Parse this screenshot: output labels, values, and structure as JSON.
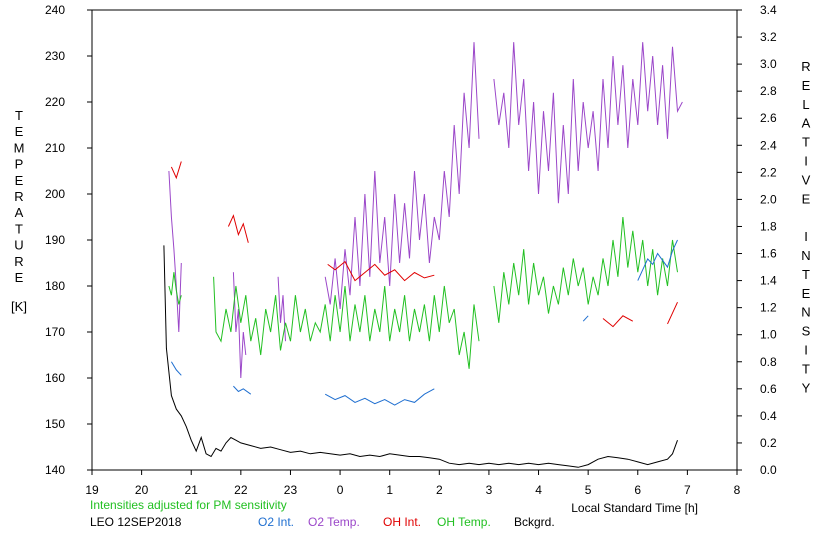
{
  "chart_data": {
    "type": "line",
    "left_axis_label": "TEMPERATURE",
    "left_axis_unit": "[K]",
    "right_axis_label": "RELATIVE INTENSITY",
    "xlabel": "Local Standard Time [h]",
    "note": "Intensities adjusted for PM sensitivity",
    "station_date": "LEO 12SEP2018",
    "xlim": [
      19,
      32
    ],
    "x_tick_labels": [
      "19",
      "20",
      "21",
      "22",
      "23",
      "0",
      "1",
      "2",
      "3",
      "4",
      "5",
      "6",
      "7",
      "8"
    ],
    "left_ylim": [
      140,
      240
    ],
    "left_ticks": [
      140,
      150,
      160,
      170,
      180,
      190,
      200,
      210,
      220,
      230,
      240
    ],
    "right_ylim": [
      0.0,
      3.4
    ],
    "right_ticks": [
      "0.0",
      "0.2",
      "0.4",
      "0.6",
      "0.8",
      "1.0",
      "1.2",
      "1.4",
      "1.6",
      "1.8",
      "2.0",
      "2.2",
      "2.4",
      "2.6",
      "2.8",
      "3.0",
      "3.2",
      "3.4"
    ],
    "grid": false,
    "colors": {
      "O2 Int.": "#1f6fd0",
      "O2 Temp.": "#9b47c9",
      "OH Int.": "#e00000",
      "OH Temp.": "#22c022",
      "Bckgrd.": "#000000",
      "note": "#22c022"
    },
    "series": [
      {
        "name": "O2 Temp.",
        "axis": "left",
        "points": [
          [
            20.55,
            205
          ],
          [
            20.6,
            195
          ],
          [
            20.65,
            188
          ],
          [
            20.7,
            180
          ],
          [
            20.75,
            170
          ],
          [
            20.8,
            185
          ],
          [
            21.85,
            183
          ],
          [
            21.9,
            170
          ],
          [
            21.95,
            175
          ],
          [
            22.0,
            160
          ],
          [
            22.05,
            170
          ],
          [
            22.1,
            165
          ],
          [
            22.75,
            182
          ],
          [
            22.8,
            172
          ],
          [
            22.85,
            178
          ],
          [
            22.9,
            168
          ],
          [
            23.7,
            182
          ],
          [
            23.8,
            176
          ],
          [
            23.9,
            186
          ],
          [
            24.0,
            175
          ],
          [
            24.1,
            188
          ],
          [
            24.2,
            178
          ],
          [
            24.3,
            195
          ],
          [
            24.4,
            180
          ],
          [
            24.5,
            200
          ],
          [
            24.6,
            182
          ],
          [
            24.7,
            205
          ],
          [
            24.8,
            185
          ],
          [
            24.9,
            195
          ],
          [
            25.0,
            180
          ],
          [
            25.1,
            200
          ],
          [
            25.2,
            185
          ],
          [
            25.3,
            198
          ],
          [
            25.4,
            186
          ],
          [
            25.5,
            205
          ],
          [
            25.6,
            190
          ],
          [
            25.7,
            200
          ],
          [
            25.8,
            185
          ],
          [
            25.9,
            195
          ],
          [
            26.0,
            190
          ],
          [
            26.1,
            205
          ],
          [
            26.2,
            195
          ],
          [
            26.3,
            215
          ],
          [
            26.4,
            200
          ],
          [
            26.5,
            222
          ],
          [
            26.6,
            210
          ],
          [
            26.7,
            233
          ],
          [
            26.8,
            212
          ],
          [
            27.1,
            225
          ],
          [
            27.2,
            215
          ],
          [
            27.3,
            222
          ],
          [
            27.4,
            210
          ],
          [
            27.5,
            233
          ],
          [
            27.6,
            215
          ],
          [
            27.7,
            225
          ],
          [
            27.8,
            205
          ],
          [
            27.9,
            220
          ],
          [
            28.0,
            200
          ],
          [
            28.1,
            218
          ],
          [
            28.2,
            205
          ],
          [
            28.3,
            222
          ],
          [
            28.4,
            198
          ],
          [
            28.5,
            215
          ],
          [
            28.6,
            200
          ],
          [
            28.7,
            225
          ],
          [
            28.8,
            205
          ],
          [
            28.9,
            220
          ],
          [
            29.0,
            210
          ],
          [
            29.1,
            218
          ],
          [
            29.2,
            205
          ],
          [
            29.3,
            225
          ],
          [
            29.4,
            210
          ],
          [
            29.5,
            230
          ],
          [
            29.6,
            215
          ],
          [
            29.7,
            228
          ],
          [
            29.8,
            210
          ],
          [
            29.9,
            225
          ],
          [
            30.0,
            215
          ],
          [
            30.1,
            233
          ],
          [
            30.2,
            218
          ],
          [
            30.3,
            230
          ],
          [
            30.4,
            215
          ],
          [
            30.5,
            228
          ],
          [
            30.6,
            212
          ],
          [
            30.7,
            232
          ],
          [
            30.8,
            218
          ],
          [
            30.9,
            220
          ]
        ]
      },
      {
        "name": "OH Temp.",
        "axis": "left",
        "points": [
          [
            20.55,
            180
          ],
          [
            20.6,
            178
          ],
          [
            20.65,
            183
          ],
          [
            20.7,
            179
          ],
          [
            20.75,
            176
          ],
          [
            20.8,
            178
          ],
          [
            21.45,
            182
          ],
          [
            21.5,
            170
          ],
          [
            21.6,
            168
          ],
          [
            21.7,
            175
          ],
          [
            21.8,
            170
          ],
          [
            21.9,
            180
          ],
          [
            22.0,
            172
          ],
          [
            22.1,
            178
          ],
          [
            22.2,
            168
          ],
          [
            22.3,
            173
          ],
          [
            22.4,
            165
          ],
          [
            22.5,
            175
          ],
          [
            22.6,
            170
          ],
          [
            22.7,
            178
          ],
          [
            22.8,
            166
          ],
          [
            22.9,
            172
          ],
          [
            23.0,
            168
          ],
          [
            23.1,
            178
          ],
          [
            23.2,
            170
          ],
          [
            23.3,
            175
          ],
          [
            23.4,
            168
          ],
          [
            23.5,
            172
          ],
          [
            23.6,
            170
          ],
          [
            23.7,
            176
          ],
          [
            23.8,
            168
          ],
          [
            23.9,
            178
          ],
          [
            24.0,
            170
          ],
          [
            24.1,
            180
          ],
          [
            24.2,
            168
          ],
          [
            24.3,
            176
          ],
          [
            24.4,
            170
          ],
          [
            24.5,
            178
          ],
          [
            24.6,
            168
          ],
          [
            24.7,
            175
          ],
          [
            24.8,
            170
          ],
          [
            24.9,
            180
          ],
          [
            25.0,
            168
          ],
          [
            25.1,
            175
          ],
          [
            25.2,
            170
          ],
          [
            25.3,
            178
          ],
          [
            25.4,
            168
          ],
          [
            25.5,
            175
          ],
          [
            25.6,
            170
          ],
          [
            25.7,
            176
          ],
          [
            25.8,
            168
          ],
          [
            25.9,
            178
          ],
          [
            26.0,
            170
          ],
          [
            26.1,
            180
          ],
          [
            26.2,
            172
          ],
          [
            26.3,
            175
          ],
          [
            26.4,
            165
          ],
          [
            26.5,
            170
          ],
          [
            26.6,
            162
          ],
          [
            26.7,
            176
          ],
          [
            26.8,
            168
          ],
          [
            27.1,
            180
          ],
          [
            27.2,
            172
          ],
          [
            27.3,
            183
          ],
          [
            27.4,
            176
          ],
          [
            27.5,
            185
          ],
          [
            27.6,
            178
          ],
          [
            27.7,
            188
          ],
          [
            27.8,
            176
          ],
          [
            27.9,
            185
          ],
          [
            28.0,
            178
          ],
          [
            28.1,
            182
          ],
          [
            28.2,
            174
          ],
          [
            28.3,
            180
          ],
          [
            28.4,
            176
          ],
          [
            28.5,
            184
          ],
          [
            28.6,
            178
          ],
          [
            28.7,
            186
          ],
          [
            28.8,
            180
          ],
          [
            28.9,
            184
          ],
          [
            29.0,
            176
          ],
          [
            29.1,
            182
          ],
          [
            29.2,
            178
          ],
          [
            29.3,
            186
          ],
          [
            29.4,
            180
          ],
          [
            29.5,
            190
          ],
          [
            29.6,
            182
          ],
          [
            29.7,
            195
          ],
          [
            29.8,
            184
          ],
          [
            29.9,
            192
          ],
          [
            30.0,
            183
          ],
          [
            30.1,
            190
          ],
          [
            30.2,
            180
          ],
          [
            30.3,
            188
          ],
          [
            30.4,
            178
          ],
          [
            30.5,
            186
          ],
          [
            30.6,
            180
          ],
          [
            30.7,
            190
          ],
          [
            30.8,
            183
          ]
        ]
      },
      {
        "name": "OH Int.",
        "axis": "right",
        "points": [
          [
            20.6,
            2.24
          ],
          [
            20.7,
            2.16
          ],
          [
            20.8,
            2.28
          ],
          [
            21.75,
            1.8
          ],
          [
            21.85,
            1.88
          ],
          [
            21.95,
            1.74
          ],
          [
            22.05,
            1.82
          ],
          [
            22.15,
            1.68
          ],
          [
            23.75,
            1.52
          ],
          [
            23.9,
            1.48
          ],
          [
            24.1,
            1.54
          ],
          [
            24.3,
            1.4
          ],
          [
            24.5,
            1.46
          ],
          [
            24.7,
            1.52
          ],
          [
            24.9,
            1.44
          ],
          [
            25.1,
            1.48
          ],
          [
            25.3,
            1.4
          ],
          [
            25.5,
            1.46
          ],
          [
            25.7,
            1.42
          ],
          [
            25.9,
            1.44
          ],
          [
            29.3,
            1.12
          ],
          [
            29.5,
            1.06
          ],
          [
            29.7,
            1.14
          ],
          [
            29.9,
            1.1
          ],
          [
            30.6,
            1.08
          ],
          [
            30.7,
            1.16
          ],
          [
            30.8,
            1.24
          ]
        ]
      },
      {
        "name": "O2 Int.",
        "axis": "right",
        "points": [
          [
            20.6,
            0.8
          ],
          [
            20.7,
            0.74
          ],
          [
            20.8,
            0.7
          ],
          [
            21.85,
            0.62
          ],
          [
            21.95,
            0.58
          ],
          [
            22.05,
            0.6
          ],
          [
            22.2,
            0.56
          ],
          [
            23.7,
            0.56
          ],
          [
            23.9,
            0.52
          ],
          [
            24.1,
            0.55
          ],
          [
            24.3,
            0.5
          ],
          [
            24.5,
            0.53
          ],
          [
            24.7,
            0.49
          ],
          [
            24.9,
            0.52
          ],
          [
            25.1,
            0.48
          ],
          [
            25.3,
            0.52
          ],
          [
            25.5,
            0.5
          ],
          [
            25.7,
            0.56
          ],
          [
            25.9,
            0.6
          ],
          [
            28.9,
            1.1
          ],
          [
            29.0,
            1.14
          ],
          [
            30.0,
            1.4
          ],
          [
            30.1,
            1.48
          ],
          [
            30.2,
            1.56
          ],
          [
            30.3,
            1.52
          ],
          [
            30.4,
            1.6
          ],
          [
            30.6,
            1.5
          ],
          [
            30.7,
            1.62
          ],
          [
            30.8,
            1.7
          ]
        ]
      },
      {
        "name": "Bckgrd.",
        "axis": "right",
        "points": [
          [
            20.45,
            1.66
          ],
          [
            20.5,
            0.9
          ],
          [
            20.6,
            0.55
          ],
          [
            20.7,
            0.45
          ],
          [
            20.8,
            0.4
          ],
          [
            20.9,
            0.32
          ],
          [
            21.0,
            0.22
          ],
          [
            21.1,
            0.14
          ],
          [
            21.2,
            0.24
          ],
          [
            21.3,
            0.12
          ],
          [
            21.4,
            0.1
          ],
          [
            21.5,
            0.16
          ],
          [
            21.6,
            0.14
          ],
          [
            21.7,
            0.2
          ],
          [
            21.8,
            0.24
          ],
          [
            21.9,
            0.22
          ],
          [
            22.0,
            0.2
          ],
          [
            22.2,
            0.18
          ],
          [
            22.4,
            0.16
          ],
          [
            22.6,
            0.17
          ],
          [
            22.8,
            0.15
          ],
          [
            23.0,
            0.13
          ],
          [
            23.2,
            0.14
          ],
          [
            23.4,
            0.12
          ],
          [
            23.6,
            0.13
          ],
          [
            23.8,
            0.12
          ],
          [
            24.0,
            0.11
          ],
          [
            24.2,
            0.12
          ],
          [
            24.4,
            0.1
          ],
          [
            24.6,
            0.11
          ],
          [
            24.8,
            0.1
          ],
          [
            25.0,
            0.12
          ],
          [
            25.2,
            0.11
          ],
          [
            25.4,
            0.1
          ],
          [
            25.6,
            0.1
          ],
          [
            25.8,
            0.09
          ],
          [
            26.0,
            0.08
          ],
          [
            26.2,
            0.05
          ],
          [
            26.4,
            0.04
          ],
          [
            26.6,
            0.05
          ],
          [
            26.8,
            0.04
          ],
          [
            27.0,
            0.05
          ],
          [
            27.2,
            0.04
          ],
          [
            27.4,
            0.05
          ],
          [
            27.6,
            0.04
          ],
          [
            27.8,
            0.05
          ],
          [
            28.0,
            0.04
          ],
          [
            28.2,
            0.05
          ],
          [
            28.4,
            0.04
          ],
          [
            28.6,
            0.03
          ],
          [
            28.8,
            0.02
          ],
          [
            29.0,
            0.04
          ],
          [
            29.2,
            0.08
          ],
          [
            29.4,
            0.1
          ],
          [
            29.6,
            0.09
          ],
          [
            29.8,
            0.08
          ],
          [
            30.0,
            0.06
          ],
          [
            30.2,
            0.04
          ],
          [
            30.4,
            0.06
          ],
          [
            30.6,
            0.08
          ],
          [
            30.7,
            0.12
          ],
          [
            30.8,
            0.22
          ]
        ]
      }
    ]
  }
}
